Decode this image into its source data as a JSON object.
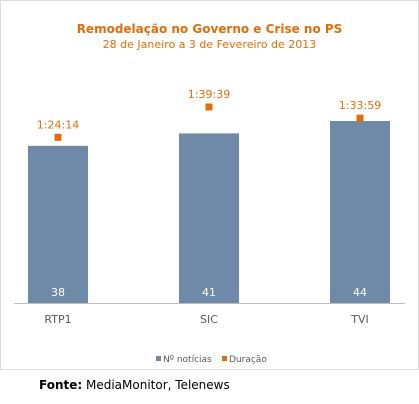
{
  "chart_data": {
    "type": "bar",
    "title": "Remodelação no Governo e Crise no PS",
    "subtitle": "28 de Janeiro a 3 de Fevereiro de 2013",
    "categories": [
      "RTP1",
      "SIC",
      "TVI"
    ],
    "series": [
      {
        "name": "Nº notícias",
        "values": [
          38,
          41,
          44
        ],
        "color": "#6e8aa8",
        "kind": "bar"
      },
      {
        "name": "Duração",
        "values": [
          "1:24:14",
          "1:39:39",
          "1:33:59"
        ],
        "color": "#e46c0a",
        "kind": "marker"
      }
    ],
    "bar_labels": [
      "38",
      "41",
      "44"
    ],
    "duration_labels": [
      "1:24:14",
      "1:39:39",
      "1:33:59"
    ],
    "legend_position": "bottom",
    "grid": false
  },
  "source": {
    "label": "Fonte:",
    "text": " MediaMonitor, Telenews"
  }
}
